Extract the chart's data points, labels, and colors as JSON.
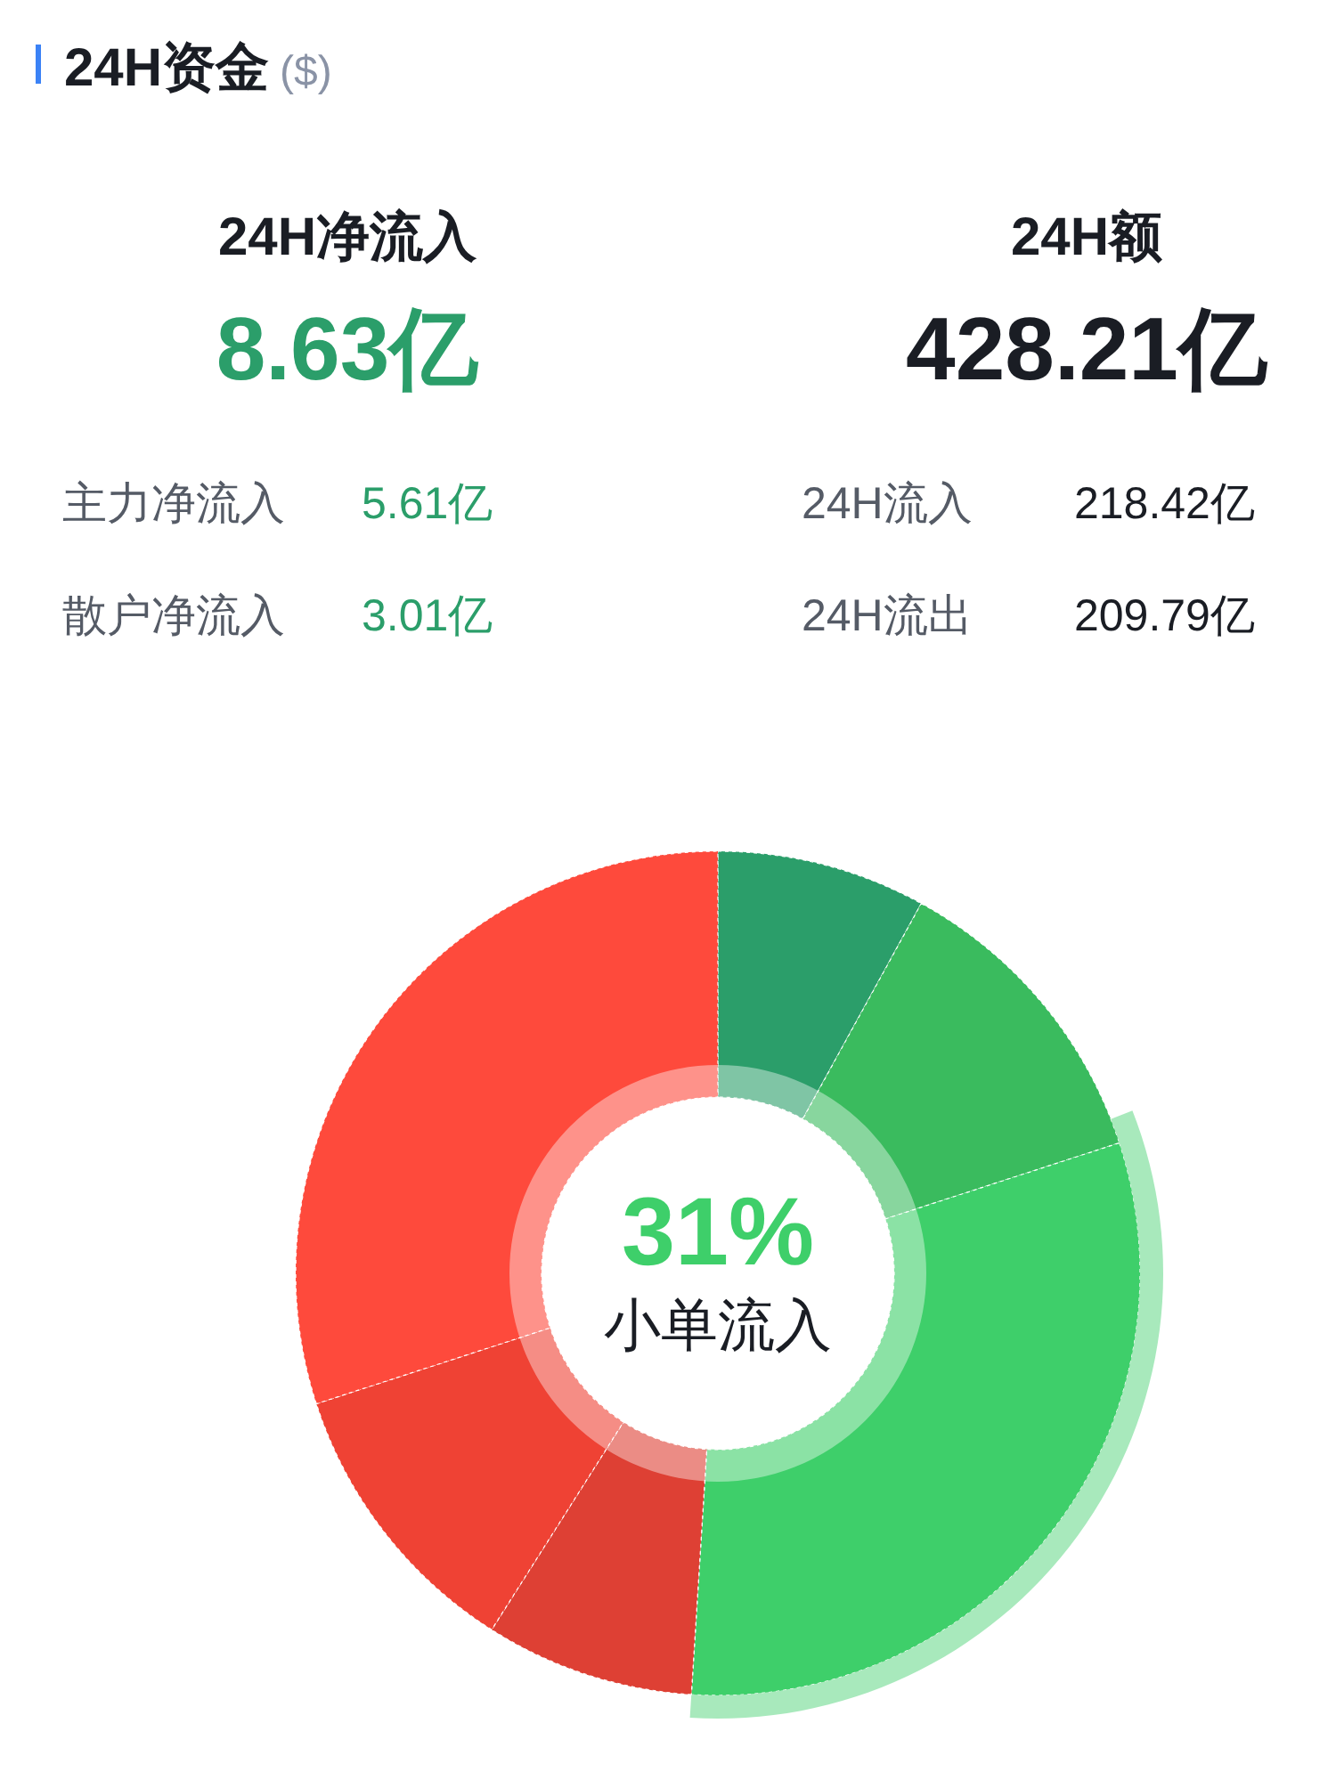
{
  "chart_data": [
    {
      "type": "other",
      "title": "24H资金",
      "subtitle": "($)",
      "annotations": [
        "24H净流入",
        "8.63亿",
        "主力净流入",
        "5.61亿",
        "散户净流入",
        "3.01亿",
        "24H额",
        "428.21亿",
        "24H流入",
        "218.42亿",
        "24H流出",
        "209.79亿"
      ]
    },
    {
      "type": "donut",
      "categories": [
        null,
        null,
        "小单流入",
        null,
        null,
        null
      ],
      "values": [
        8,
        12,
        31,
        8,
        11,
        30
      ],
      "colors": [
        "#2b9e6a",
        "#3abb5e",
        "#3ecf6a",
        "#de4034",
        "#ef4234",
        "#fe4a3c"
      ],
      "value_labels": [
        null,
        null,
        "31%",
        null,
        null,
        null
      ]
    }
  ]
}
